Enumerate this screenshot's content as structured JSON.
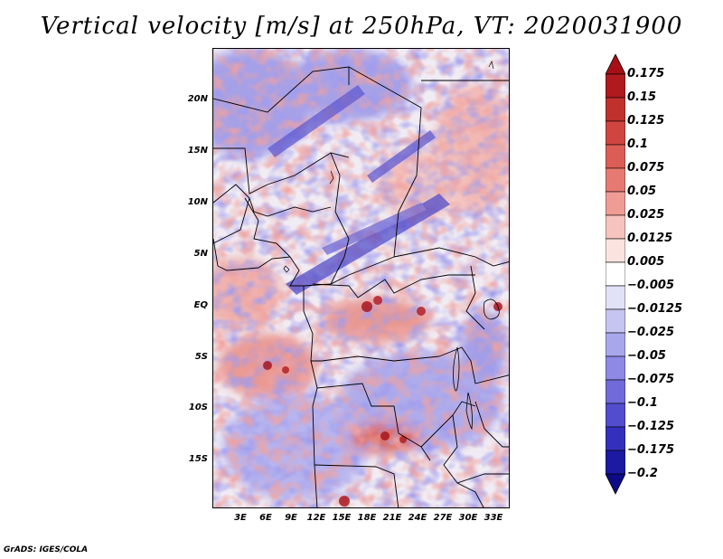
{
  "title": "Vertical velocity [m/s] at 250hPa, VT: 2020031900",
  "credit": "GrADS: IGES/COLA",
  "map": {
    "lat_labels": [
      "20N",
      "15N",
      "10N",
      "5N",
      "EQ",
      "5S",
      "10S",
      "15S"
    ],
    "lon_labels": [
      "3E",
      "6E",
      "9E",
      "12E",
      "15E",
      "18E",
      "21E",
      "24E",
      "27E",
      "30E",
      "33E"
    ]
  },
  "colorbar": {
    "labels": [
      "0.175",
      "0.15",
      "0.125",
      "0.1",
      "0.075",
      "0.05",
      "0.025",
      "0.0125",
      "0.005",
      "−0.005",
      "−0.0125",
      "−0.025",
      "−0.05",
      "−0.075",
      "−0.1",
      "−0.125",
      "−0.175",
      "−0.2"
    ],
    "colors": [
      "#a50f15",
      "#b01a1f",
      "#c0302d",
      "#d04540",
      "#dc5d56",
      "#e67a72",
      "#ef9c95",
      "#f6c3be",
      "#fbe3e0",
      "#ffffff",
      "#e1e1f8",
      "#c6c5f2",
      "#a9a7ec",
      "#8d89e4",
      "#706ada",
      "#524dce",
      "#3430bd",
      "#1c1aa2",
      "#0c0a86"
    ]
  }
}
